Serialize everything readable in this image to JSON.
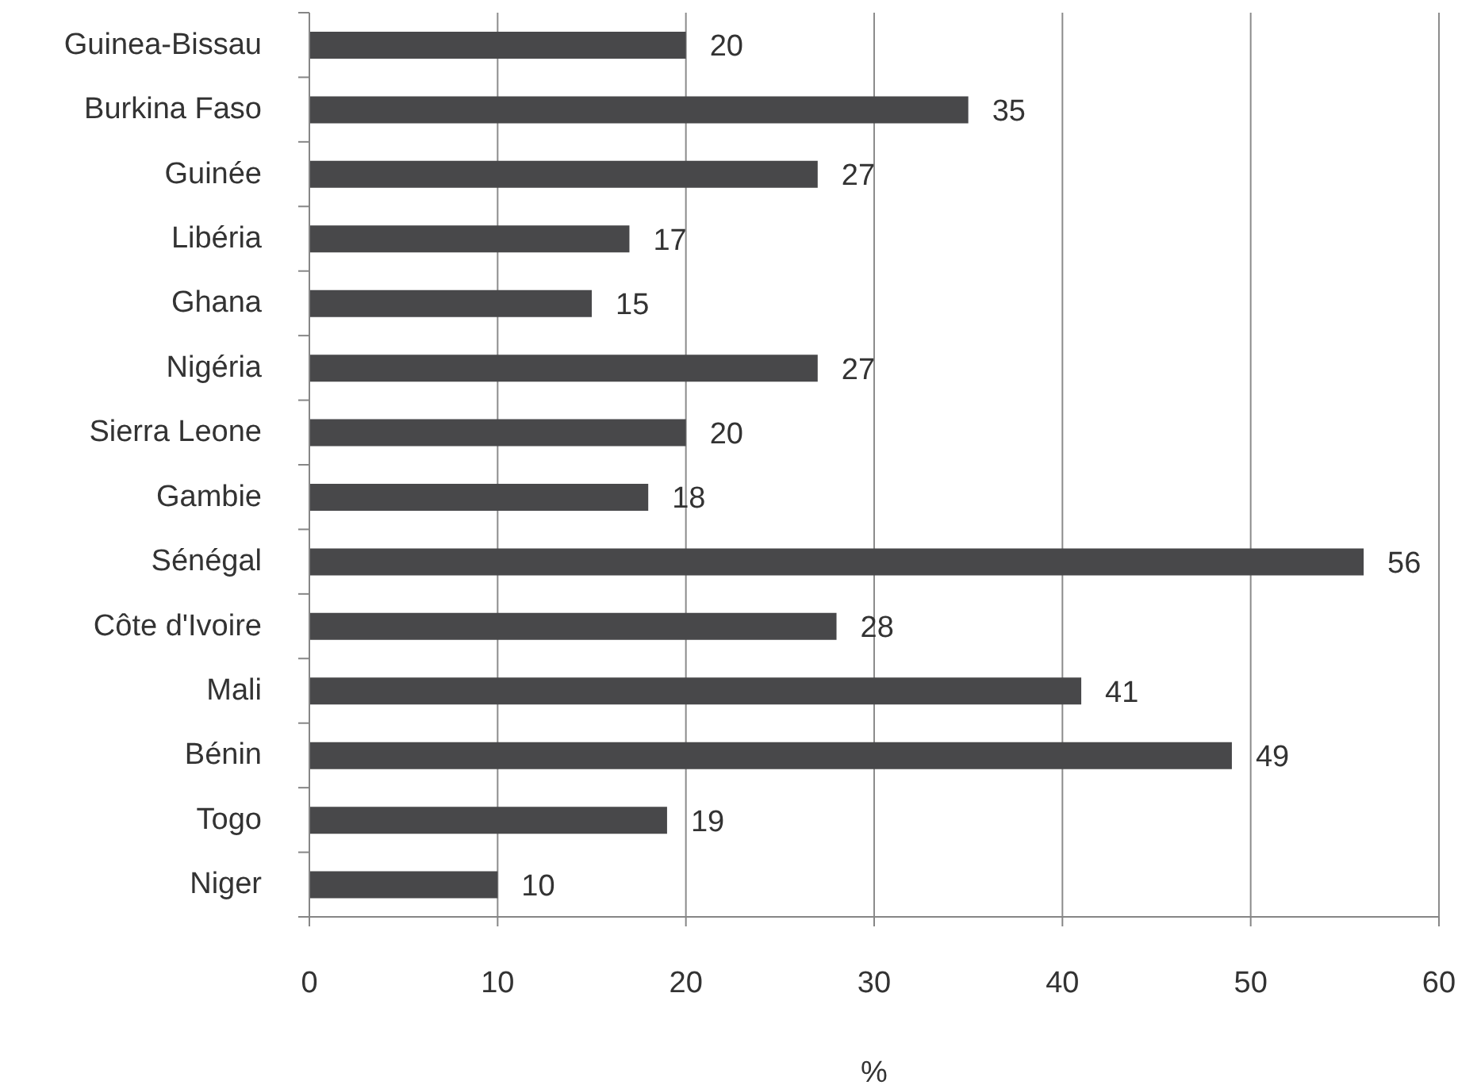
{
  "chart_data": {
    "type": "bar",
    "orientation": "horizontal",
    "xlabel": "%",
    "categories": [
      "Guinea-Bissau",
      "Burkina Faso",
      "Guinée",
      "Libéria",
      "Ghana",
      "Nigéria",
      "Sierra Leone",
      "Gambie",
      "Sénégal",
      "Côte d'Ivoire",
      "Mali",
      "Bénin",
      "Togo",
      "Niger"
    ],
    "values": [
      20,
      35,
      27,
      17,
      15,
      27,
      20,
      18,
      56,
      28,
      41,
      49,
      19,
      10
    ],
    "color": "#48484a",
    "xlim": [
      0,
      60
    ],
    "xticks": [
      0,
      10,
      20,
      30,
      40,
      50,
      60
    ],
    "grid": "x",
    "data_labels": true
  }
}
